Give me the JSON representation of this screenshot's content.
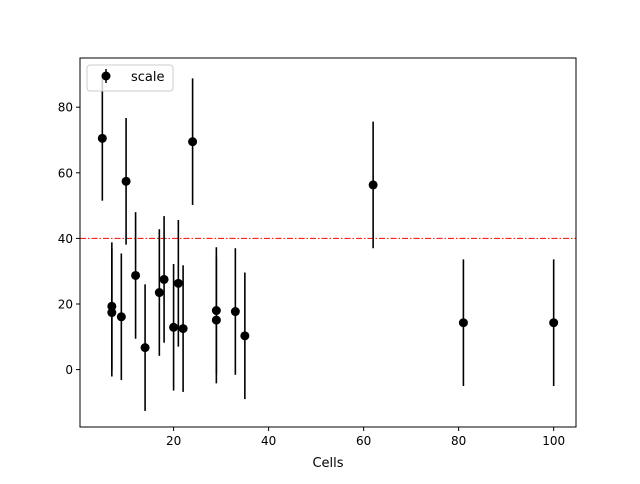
{
  "chart_data": {
    "type": "scatter",
    "title": "",
    "xlabel": "Cells",
    "ylabel": "",
    "xlim": [
      0.3,
      104.7
    ],
    "ylim": [
      -17.5,
      95
    ],
    "xticks": [
      20,
      40,
      60,
      80,
      100
    ],
    "yticks": [
      0,
      20,
      40,
      60,
      80
    ],
    "grid": false,
    "legend": {
      "position": "upper-left",
      "entries": [
        "scale"
      ]
    },
    "reference_line": {
      "y": 40,
      "color": "#ff0000",
      "style": "dash-dot"
    },
    "series": [
      {
        "name": "scale",
        "color": "#000000",
        "points": [
          {
            "x": 5,
            "y": 70.5,
            "err": 19
          },
          {
            "x": 7,
            "y": 19.3,
            "err": 19.5
          },
          {
            "x": 7,
            "y": 17.4,
            "err": 19.5
          },
          {
            "x": 9,
            "y": 16.1,
            "err": 19.3
          },
          {
            "x": 10,
            "y": 57.4,
            "err": 19.3
          },
          {
            "x": 12,
            "y": 28.7,
            "err": 19.3
          },
          {
            "x": 14,
            "y": 6.7,
            "err": 19.3
          },
          {
            "x": 17,
            "y": 23.5,
            "err": 19.3
          },
          {
            "x": 18,
            "y": 27.5,
            "err": 19.3
          },
          {
            "x": 20,
            "y": 12.9,
            "err": 19.3
          },
          {
            "x": 21,
            "y": 26.3,
            "err": 19.3
          },
          {
            "x": 22,
            "y": 12.5,
            "err": 19.3
          },
          {
            "x": 24,
            "y": 69.5,
            "err": 19.3
          },
          {
            "x": 29,
            "y": 18.0,
            "err": 19.3
          },
          {
            "x": 29,
            "y": 15.1,
            "err": 19.3
          },
          {
            "x": 33,
            "y": 17.7,
            "err": 19.3
          },
          {
            "x": 35,
            "y": 10.3,
            "err": 19.3
          },
          {
            "x": 62,
            "y": 56.3,
            "err": 19.3
          },
          {
            "x": 81,
            "y": 14.3,
            "err": 19.3
          },
          {
            "x": 100,
            "y": 14.3,
            "err": 19.3
          }
        ]
      }
    ]
  }
}
